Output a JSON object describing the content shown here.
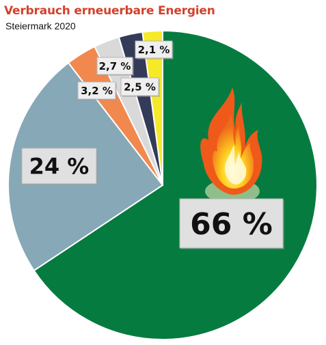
{
  "chart_data": {
    "type": "pie",
    "title": "Verbrauch erneuerbare Energien",
    "subtitle": "Steiermark 2020",
    "start_angle_deg": 0,
    "direction": "clockwise",
    "slices": [
      {
        "label": "66 %",
        "value": 66,
        "color": "#067b40"
      },
      {
        "label": "24 %",
        "value": 24,
        "color": "#87a8b6"
      },
      {
        "label": "3,2 %",
        "value": 3.2,
        "color": "#f1894f"
      },
      {
        "label": "2,7 %",
        "value": 2.7,
        "color": "#d8d9d8"
      },
      {
        "label": "2,5 %",
        "value": 2.5,
        "color": "#333b58"
      },
      {
        "label": "2,1 %",
        "value": 2.1,
        "color": "#f6e928"
      }
    ],
    "icon": "flame-icon"
  }
}
